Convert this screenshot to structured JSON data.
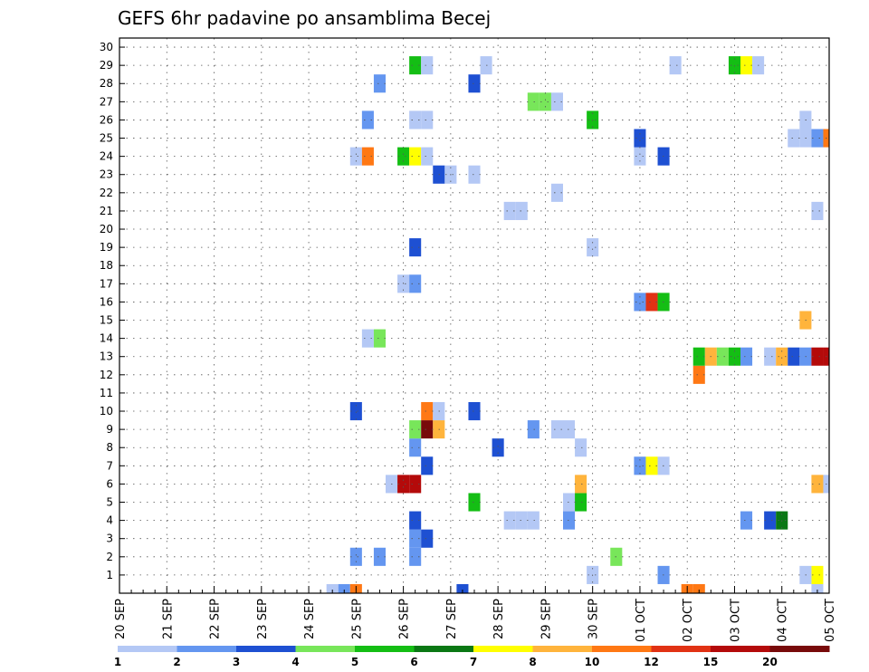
{
  "chart_data": {
    "type": "heatmap",
    "title": "GEFS 6hr padavine po ansamblima Becej",
    "y_categories": [
      "1",
      "2",
      "3",
      "4",
      "5",
      "6",
      "7",
      "8",
      "9",
      "10",
      "11",
      "12",
      "13",
      "14",
      "15",
      "16",
      "17",
      "18",
      "19",
      "20",
      "21",
      "22",
      "23",
      "24",
      "25",
      "26",
      "27",
      "28",
      "29",
      "30"
    ],
    "x_tick_labels": [
      "20 SEP",
      "21 SEP",
      "22 SEP",
      "23 SEP",
      "24 SEP",
      "25 SEP",
      "26 SEP",
      "27 SEP",
      "28 SEP",
      "29 SEP",
      "30 SEP",
      "01 OCT",
      "02 OCT",
      "03 OCT",
      "04 OCT",
      "05 OCT"
    ],
    "x_range_steps": [
      0,
      60
    ],
    "grid": true,
    "colorbar": {
      "labels": [
        "1",
        "2",
        "3",
        "4",
        "5",
        "6",
        "7",
        "8",
        "10",
        "12",
        "15",
        "20"
      ],
      "colors": [
        "#b4c8f5",
        "#6496f0",
        "#1e50d2",
        "#78e65a",
        "#14be14",
        "#0a7814",
        "#ffff00",
        "#ffb43c",
        "#ff7814",
        "#e13214",
        "#b40a0a",
        "#780a0a"
      ]
    },
    "cells": [
      [
        18,
        -1,
        1
      ],
      [
        19,
        -1,
        2
      ],
      [
        20,
        -1,
        9
      ],
      [
        29,
        -1,
        3
      ],
      [
        48,
        -1,
        9
      ],
      [
        49,
        -1,
        9
      ],
      [
        59,
        -1,
        1
      ],
      [
        46,
        0,
        2
      ],
      [
        40,
        0,
        1
      ],
      [
        59,
        0,
        7
      ],
      [
        58,
        0,
        1
      ],
      [
        22,
        1,
        2
      ],
      [
        25,
        1,
        2
      ],
      [
        42,
        1,
        4
      ],
      [
        20,
        1,
        2
      ],
      [
        25,
        2,
        2
      ],
      [
        26,
        2,
        3
      ],
      [
        25,
        3,
        3
      ],
      [
        33,
        3,
        1
      ],
      [
        34,
        3,
        1
      ],
      [
        35,
        3,
        1
      ],
      [
        38,
        3,
        2
      ],
      [
        53,
        3,
        2
      ],
      [
        55,
        3,
        3
      ],
      [
        56,
        3,
        6
      ],
      [
        30,
        4,
        5
      ],
      [
        38,
        4,
        1
      ],
      [
        39,
        4,
        5
      ],
      [
        23,
        5,
        1
      ],
      [
        24,
        5,
        11
      ],
      [
        25,
        5,
        11
      ],
      [
        39,
        5,
        8
      ],
      [
        59,
        5,
        8
      ],
      [
        60,
        5,
        1
      ],
      [
        26,
        6,
        3
      ],
      [
        44,
        6,
        2
      ],
      [
        45,
        6,
        7
      ],
      [
        46,
        6,
        1
      ],
      [
        25,
        7,
        2
      ],
      [
        32,
        7,
        3
      ],
      [
        39,
        7,
        1
      ],
      [
        25,
        8,
        4
      ],
      [
        26,
        8,
        12
      ],
      [
        27,
        8,
        8
      ],
      [
        35,
        8,
        2
      ],
      [
        37,
        8,
        1
      ],
      [
        38,
        8,
        1
      ],
      [
        20,
        9,
        3
      ],
      [
        26,
        9,
        9
      ],
      [
        27,
        9,
        1
      ],
      [
        30,
        9,
        3
      ],
      [
        49,
        11,
        9
      ],
      [
        49,
        12,
        5
      ],
      [
        50,
        12,
        8
      ],
      [
        51,
        12,
        4
      ],
      [
        52,
        12,
        5
      ],
      [
        53,
        12,
        2
      ],
      [
        55,
        12,
        1
      ],
      [
        56,
        12,
        8
      ],
      [
        57,
        12,
        3
      ],
      [
        58,
        12,
        2
      ],
      [
        59,
        12,
        11
      ],
      [
        60,
        12,
        11
      ],
      [
        61,
        12,
        3
      ],
      [
        21,
        13,
        1
      ],
      [
        22,
        13,
        4
      ],
      [
        58,
        14,
        8
      ],
      [
        44,
        15,
        2
      ],
      [
        45,
        15,
        10
      ],
      [
        46,
        15,
        5
      ],
      [
        24,
        16,
        1
      ],
      [
        25,
        16,
        2
      ],
      [
        40,
        18,
        1
      ],
      [
        25,
        18,
        3
      ],
      [
        33,
        20,
        1
      ],
      [
        34,
        20,
        1
      ],
      [
        59,
        20,
        1
      ],
      [
        37,
        21,
        1
      ],
      [
        27,
        22,
        3
      ],
      [
        28,
        22,
        1
      ],
      [
        30,
        22,
        1
      ],
      [
        20,
        23,
        1
      ],
      [
        21,
        23,
        9
      ],
      [
        24,
        23,
        5
      ],
      [
        25,
        23,
        7
      ],
      [
        26,
        23,
        1
      ],
      [
        44,
        23,
        1
      ],
      [
        46,
        23,
        3
      ],
      [
        44,
        24,
        3
      ],
      [
        57,
        24,
        1
      ],
      [
        58,
        24,
        1
      ],
      [
        59,
        24,
        2
      ],
      [
        60,
        24,
        9
      ],
      [
        21,
        25,
        2
      ],
      [
        25,
        25,
        1
      ],
      [
        26,
        25,
        1
      ],
      [
        40,
        25,
        5
      ],
      [
        58,
        25,
        1
      ],
      [
        35,
        26,
        4
      ],
      [
        36,
        26,
        4
      ],
      [
        37,
        26,
        1
      ],
      [
        22,
        27,
        2
      ],
      [
        30,
        27,
        3
      ],
      [
        25,
        28,
        5
      ],
      [
        26,
        28,
        1
      ],
      [
        31,
        28,
        1
      ],
      [
        47,
        28,
        1
      ],
      [
        52,
        28,
        5
      ],
      [
        53,
        28,
        7
      ],
      [
        54,
        28,
        1
      ]
    ]
  }
}
